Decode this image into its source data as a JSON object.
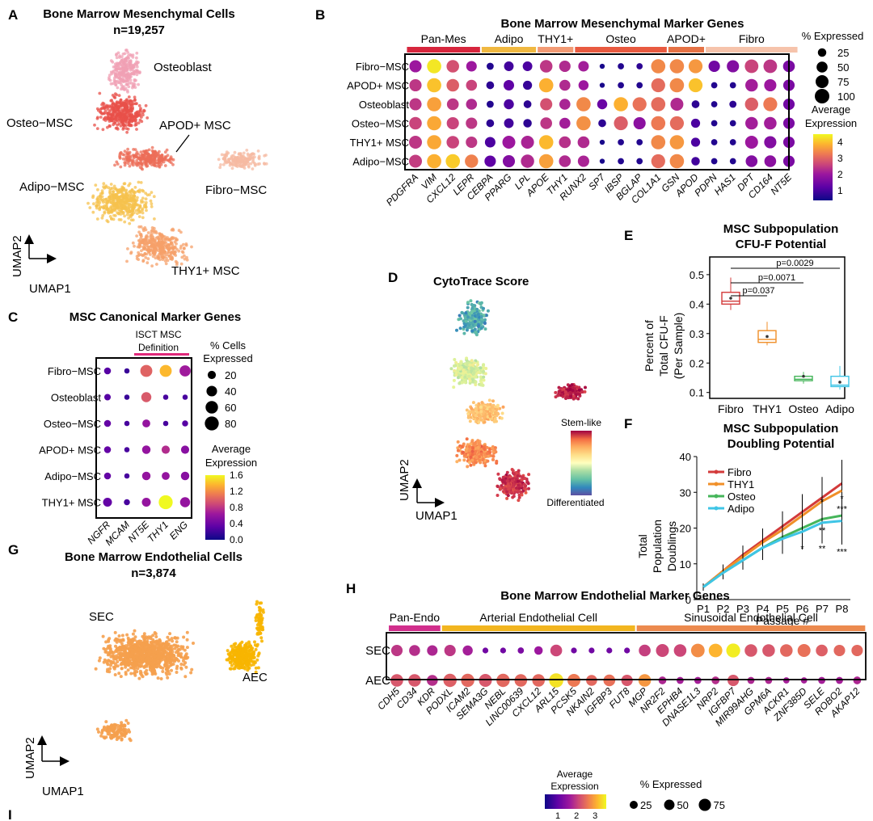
{
  "figure_label": "Figure panels A–I",
  "colors": {
    "plasma": [
      "#0d0887",
      "#5c01a6",
      "#9c179e",
      "#cc4778",
      "#ed7953",
      "#fdb42f",
      "#f0f921"
    ],
    "spectral": [
      "#5e4fa2",
      "#3288bd",
      "#66c2a5",
      "#abdda4",
      "#e6f598",
      "#fee08b",
      "#fdae61",
      "#f46d43",
      "#d53e4f",
      "#9e0142"
    ],
    "cluster_osteoblast": "#f0a0b4",
    "cluster_osteo": "#e8504a",
    "cluster_apod": "#ec6e58",
    "cluster_fibro": "#f6b9a2",
    "cluster_adipo": "#f5c14e",
    "cluster_thy1": "#f6a06a",
    "sec": "#f5a04e",
    "aec": "#f7b500",
    "pan_mes": "#d7263d",
    "adipo_bar": "#f0b840",
    "thy1_bar": "#f29a74",
    "osteo_bar": "#e85a40",
    "apod_bar": "#e57245",
    "fibro_bar": "#f6c3ab",
    "isct_bar": "#e0287a",
    "pan_endo": "#d12e8c",
    "arterial": "#f2b51f",
    "sinusoidal": "#ec8a4f",
    "box_fibro": "#d33a3a",
    "box_thy1": "#f08f28",
    "box_osteo": "#45b55a",
    "box_adipo": "#3fc5e6"
  },
  "panelA": {
    "letter": "A",
    "title": "Bone Marrow Mesenchymal Cells",
    "n": "n=19,257",
    "labels": [
      "Osteoblast",
      "Osteo−MSC",
      "APOD+ MSC",
      "Adipo−MSC",
      "Fibro−MSC",
      "THY1+ MSC"
    ],
    "axis_y": "UMAP2",
    "axis_x": "UMAP1"
  },
  "panelB": {
    "letter": "B",
    "title": "Bone Marrow Mesenchymal Marker Genes",
    "groups": [
      "Pan-Mes",
      "Adipo",
      "THY1+",
      "Osteo",
      "APOD+",
      "Fibro"
    ],
    "rows": [
      "Fibro−MSC",
      "APOD+ MSC",
      "Osteoblast",
      "Osteo−MSC",
      "THY1+ MSC",
      "Adipo−MSC"
    ],
    "genes": [
      "PDGFRA",
      "VIM",
      "CXCL12",
      "LEPR",
      "CEBPA",
      "PPARG",
      "LPL",
      "APOE",
      "THY1",
      "RUNX2",
      "SP7",
      "IBSP",
      "BGLAP",
      "COL1A1",
      "GSN",
      "APOD",
      "PDPN",
      "HAS1",
      "DPT",
      "CD164",
      "NT5E"
    ],
    "legend_size_title": "% Expressed",
    "legend_sizes": [
      "25",
      "50",
      "75",
      "100"
    ],
    "legend_color_title": "Average Expression",
    "legend_color_ticks": [
      "4",
      "3",
      "2",
      "1"
    ],
    "expr": [
      [
        1.5,
        4.3,
        2.4,
        1.5,
        0.2,
        0.5,
        0.6,
        2.0,
        1.8,
        1.6,
        0.1,
        0.2,
        0.3,
        3.2,
        3.2,
        3.4,
        1.0,
        1.2,
        2.2,
        2.0,
        1.1
      ],
      [
        2.0,
        3.9,
        2.6,
        2.2,
        0.3,
        0.8,
        0.4,
        3.7,
        1.8,
        1.5,
        0.1,
        0.2,
        0.2,
        2.8,
        3.2,
        3.9,
        0.2,
        0.2,
        1.6,
        1.5,
        1.1
      ],
      [
        2.0,
        3.5,
        2.0,
        1.8,
        0.2,
        0.6,
        0.3,
        2.4,
        1.7,
        3.2,
        0.9,
        3.7,
        2.9,
        2.8,
        1.8,
        0.3,
        0.2,
        0.3,
        2.6,
        3.0,
        1.0
      ],
      [
        2.2,
        3.6,
        2.2,
        2.0,
        0.3,
        0.5,
        0.3,
        2.0,
        1.6,
        3.3,
        0.3,
        2.6,
        1.3,
        3.0,
        2.8,
        0.6,
        0.2,
        0.2,
        1.6,
        1.6,
        1.1
      ],
      [
        2.0,
        3.6,
        2.2,
        2.0,
        0.6,
        1.5,
        1.7,
        3.8,
        1.9,
        1.8,
        0.1,
        0.2,
        0.2,
        3.2,
        3.4,
        0.6,
        0.2,
        0.2,
        1.5,
        1.2,
        1.1
      ],
      [
        2.1,
        3.7,
        4.0,
        3.1,
        0.8,
        1.2,
        1.8,
        3.5,
        1.8,
        1.7,
        0.1,
        0.2,
        0.2,
        2.8,
        3.2,
        0.5,
        0.2,
        0.2,
        1.2,
        1.3,
        1.1
      ]
    ],
    "pct": [
      [
        65,
        95,
        70,
        45,
        15,
        35,
        35,
        70,
        55,
        45,
        5,
        10,
        10,
        95,
        95,
        90,
        55,
        65,
        85,
        85,
        60
      ],
      [
        65,
        95,
        70,
        50,
        20,
        45,
        30,
        95,
        50,
        40,
        5,
        10,
        10,
        90,
        95,
        90,
        10,
        10,
        70,
        65,
        55
      ],
      [
        65,
        95,
        60,
        50,
        15,
        40,
        20,
        65,
        50,
        95,
        40,
        95,
        90,
        95,
        75,
        20,
        10,
        15,
        80,
        90,
        55
      ],
      [
        70,
        95,
        65,
        55,
        20,
        35,
        25,
        60,
        50,
        95,
        20,
        90,
        65,
        95,
        90,
        30,
        10,
        10,
        70,
        70,
        55
      ],
      [
        75,
        95,
        70,
        55,
        45,
        75,
        75,
        95,
        60,
        60,
        5,
        10,
        10,
        95,
        95,
        30,
        10,
        10,
        75,
        65,
        55
      ],
      [
        75,
        95,
        95,
        80,
        55,
        65,
        80,
        95,
        60,
        55,
        5,
        10,
        10,
        90,
        95,
        25,
        10,
        10,
        60,
        60,
        55
      ]
    ]
  },
  "panelC": {
    "letter": "C",
    "title": "MSC Canonical Marker Genes",
    "isct_label_1": "ISCT MSC",
    "isct_label_2": "Definition",
    "rows": [
      "Fibro−MSC",
      "Osteoblast",
      "Osteo−MSC",
      "APOD+ MSC",
      "Adipo−MSC",
      "THY1+ MSC"
    ],
    "genes": [
      "NGFR",
      "MCAM",
      "NT5E",
      "THY1",
      "ENG"
    ],
    "legend_size_title_1": "% Cells",
    "legend_size_title_2": "Expressed",
    "legend_sizes": [
      "20",
      "40",
      "60",
      "80"
    ],
    "legend_color_title_1": "Average",
    "legend_color_title_2": "Expression",
    "legend_color_ticks": [
      "1.6",
      "1.2",
      "0.8",
      "0.4",
      "0.0"
    ],
    "expr": [
      [
        0.25,
        0.15,
        0.95,
        1.35,
        0.55
      ],
      [
        0.25,
        0.15,
        0.9,
        0.2,
        0.2
      ],
      [
        0.3,
        0.2,
        0.5,
        0.2,
        0.25
      ],
      [
        0.3,
        0.2,
        0.5,
        0.65,
        0.45
      ],
      [
        0.3,
        0.2,
        0.5,
        0.5,
        0.45
      ],
      [
        0.3,
        0.2,
        0.5,
        1.6,
        0.5
      ]
    ],
    "pct": [
      [
        12,
        5,
        55,
        55,
        45
      ],
      [
        10,
        5,
        35,
        5,
        5
      ],
      [
        12,
        5,
        18,
        5,
        8
      ],
      [
        12,
        5,
        22,
        20,
        20
      ],
      [
        12,
        5,
        22,
        18,
        22
      ],
      [
        25,
        8,
        25,
        80,
        35
      ]
    ]
  },
  "panelD": {
    "letter": "D",
    "title": "CytoTrace Score",
    "legend_top": "Stem-like",
    "legend_bottom": "Differentiated",
    "axis_y": "UMAP2",
    "axis_x": "UMAP1"
  },
  "panelE": {
    "letter": "E",
    "title_1": "MSC Subpopulation",
    "title_2": "CFU-F Potential",
    "ylabel_1": "Percent of",
    "ylabel_2": "Total CFU-F",
    "ylabel_3": "(Per Sample)",
    "yticks": [
      "0.5",
      "0.4",
      "0.3",
      "0.2",
      "0.1"
    ],
    "pvals": [
      "p=0.0029",
      "p=0.0071",
      "p=0.037"
    ]
  },
  "panelF": {
    "letter": "F",
    "title_1": "MSC Subpopulation",
    "title_2": "Doubling Potential",
    "ylabel_1": "Total",
    "ylabel_2": "Population",
    "ylabel_3": "Doublings",
    "xlabel": "Passage #",
    "yticks": [
      "40",
      "30",
      "20",
      "10",
      "0"
    ],
    "stars_thy1": [
      "*",
      "*"
    ],
    "stars_osteo": [
      "**",
      "***"
    ],
    "stars_adipo": [
      "*",
      "**",
      "***"
    ]
  },
  "panelG": {
    "letter": "G",
    "title": "Bone Marrow Endothelial Cells",
    "n": "n=3,874",
    "labels": [
      "SEC",
      "AEC"
    ],
    "axis_y": "UMAP2",
    "axis_x": "UMAP1"
  },
  "panelH": {
    "letter": "H",
    "title": "Bone Marrow Endothelial Marker Genes",
    "groups": [
      "Pan-Endo",
      "Arterial Endothelial Cell",
      "Sinusoidal Endothelial Cell"
    ],
    "rows": [
      "SEC",
      "AEC"
    ],
    "genes": [
      "CDH5",
      "CD34",
      "KDR",
      "PODXL",
      "ICAM2",
      "SEMA3G",
      "NEBL",
      "LINC00639",
      "CXCL12",
      "ARL15",
      "PCSK5",
      "NKAIN2",
      "IGFBP3",
      "FUT8",
      "MGP",
      "NR2F2",
      "EPHB4",
      "DNASE1L3",
      "NRP2",
      "IGFBP7",
      "MIR99AHG",
      "GPM6A",
      "ACKR1",
      "ZNF385D",
      "SELE",
      "ROBO2",
      "AKAP12"
    ],
    "legend_color_title_1": "Average",
    "legend_color_title_2": "Expression",
    "legend_color_ticks": [
      "1",
      "2",
      "3"
    ],
    "legend_size_title": "% Expressed",
    "legend_sizes": [
      "25",
      "50",
      "75"
    ],
    "expr": [
      [
        1.6,
        1.5,
        1.4,
        1.6,
        1.3,
        0.8,
        0.8,
        0.9,
        1.2,
        1.8,
        0.8,
        0.8,
        0.8,
        0.8,
        1.7,
        1.8,
        1.8,
        2.6,
        3.0,
        3.5,
        2.0,
        2.0,
        2.2,
        2.3,
        2.1,
        2.2,
        2.2
      ],
      [
        2.0,
        2.0,
        1.5,
        2.1,
        2.2,
        2.0,
        2.2,
        2.2,
        2.2,
        3.4,
        2.4,
        2.2,
        2.3,
        2.0,
        2.7,
        1.4,
        1.3,
        1.3,
        1.5,
        2.0,
        1.4,
        1.4,
        1.3,
        1.3,
        1.3,
        1.3,
        1.4
      ]
    ],
    "pct": [
      [
        55,
        50,
        45,
        55,
        40,
        8,
        8,
        10,
        25,
        60,
        8,
        8,
        8,
        8,
        60,
        75,
        70,
        85,
        85,
        90,
        70,
        70,
        70,
        75,
        60,
        55,
        55
      ],
      [
        70,
        70,
        50,
        80,
        80,
        75,
        80,
        70,
        70,
        95,
        75,
        50,
        60,
        55,
        70,
        20,
        15,
        15,
        20,
        55,
        15,
        15,
        10,
        10,
        15,
        15,
        20
      ]
    ]
  },
  "panelI": {
    "letter": "I"
  }
}
